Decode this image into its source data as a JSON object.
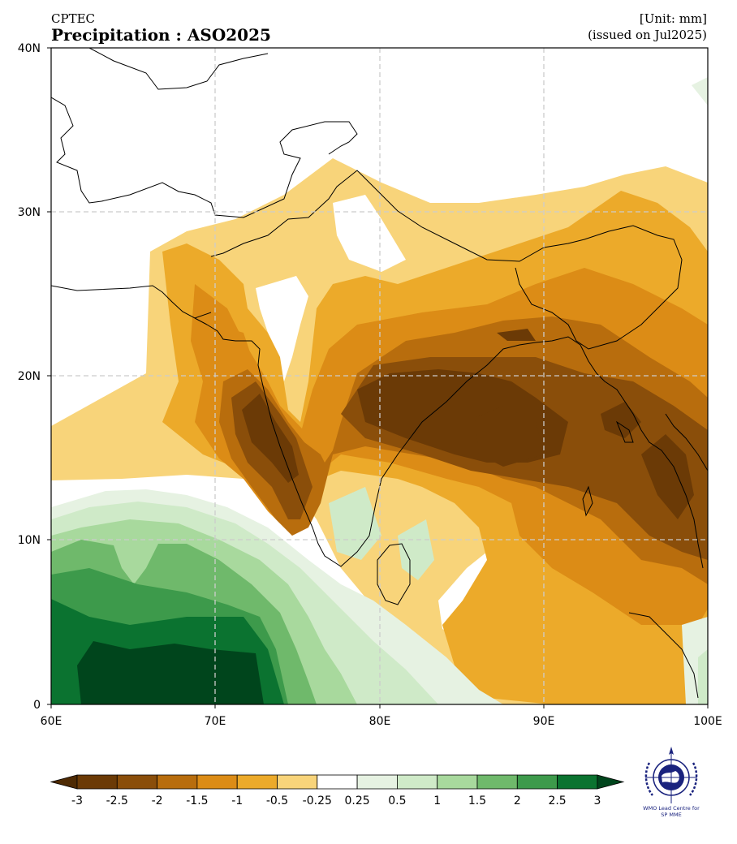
{
  "header": {
    "source": "CPTEC",
    "title": "Precipitation : ASO2025",
    "unit": "[Unit: mm]",
    "issued": "(issued on Jul2025)"
  },
  "map": {
    "lon_range": [
      60,
      100
    ],
    "lat_range": [
      0,
      40
    ],
    "lon_ticks": [
      "60E",
      "70E",
      "80E",
      "90E",
      "100E"
    ],
    "lat_ticks": [
      "0",
      "10N",
      "20N",
      "30N",
      "40N"
    ],
    "gridlines": true,
    "variable": "Precipitation anomaly",
    "colors": {
      "-3": "#6b3a06",
      "-2.5": "#8a4e0a",
      "-2": "#b86d0d",
      "-1.5": "#dc8c16",
      "-1": "#ecaa2a",
      "-0.5": "#f8d47a",
      "0": "#ffffff",
      "0.5": "#e6f2e2",
      "1": "#cfeac8",
      "1.5": "#a8d99d",
      "2": "#6fb96b",
      "2.5": "#3d9a4b",
      "3": "#0b7330"
    }
  },
  "colorbar": {
    "labels": [
      "-3",
      "-2.5",
      "-2",
      "-1.5",
      "-1",
      "-0.5",
      "-0.25",
      "0.25",
      "0.5",
      "1",
      "1.5",
      "2",
      "2.5",
      "3"
    ],
    "colors": [
      "#6b3a06",
      "#8a4e0a",
      "#b86d0d",
      "#dc8c16",
      "#ecaa2a",
      "#f8d47a",
      "#ffffff",
      "#e6f2e2",
      "#cfeac8",
      "#a8d99d",
      "#6fb96b",
      "#3d9a4b",
      "#0b7330"
    ],
    "under_color": "#4e2a03",
    "over_color": "#00451c"
  },
  "logo": {
    "text_line1": "WMO Lead Centre for",
    "text_line2": "SP MME",
    "icon": "wmo-emblem-icon"
  }
}
